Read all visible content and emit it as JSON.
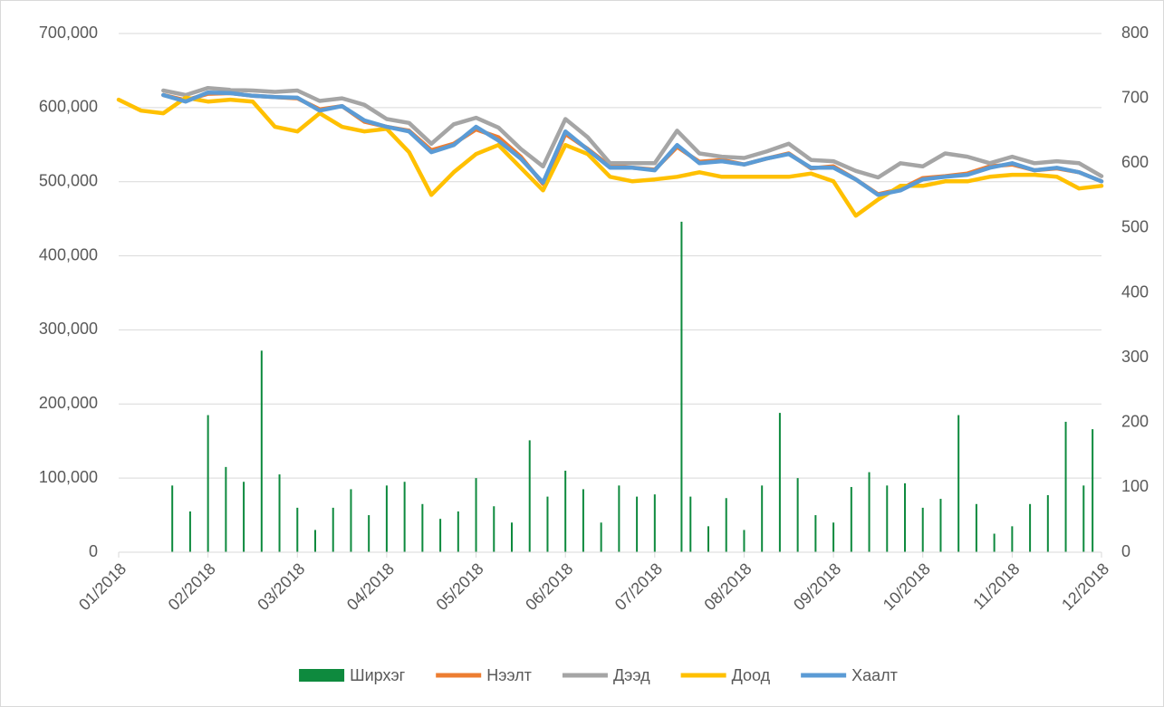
{
  "chart_data": {
    "type": "combo",
    "legend": "bottom",
    "xlim": [
      0,
      11
    ],
    "xticks": [
      {
        "value": 0,
        "label": "01/2018"
      },
      {
        "value": 1,
        "label": "02/2018"
      },
      {
        "value": 2,
        "label": "03/2018"
      },
      {
        "value": 3,
        "label": "04/2018"
      },
      {
        "value": 4,
        "label": "05/2018"
      },
      {
        "value": 5,
        "label": "06/2018"
      },
      {
        "value": 6,
        "label": "07/2018"
      },
      {
        "value": 7,
        "label": "08/2018"
      },
      {
        "value": 8,
        "label": "09/2018"
      },
      {
        "value": 9,
        "label": "10/2018"
      },
      {
        "value": 10,
        "label": "11/2018"
      },
      {
        "value": 11,
        "label": "12/2018"
      }
    ],
    "ylim": [
      0,
      700000
    ],
    "yticks": [
      0,
      {
        "value": 100000,
        "label": "100,000"
      },
      {
        "value": 200000,
        "label": "200,000"
      },
      {
        "value": 300000,
        "label": "300,000"
      },
      {
        "value": 400000,
        "label": "400,000"
      },
      {
        "value": 500000,
        "label": "500,000"
      },
      {
        "value": 600000,
        "label": "600,000"
      },
      {
        "value": 700000,
        "label": "700,000"
      }
    ],
    "y2lim": [
      0,
      800
    ],
    "y2ticks": [
      0,
      100,
      200,
      300,
      400,
      500,
      600,
      700,
      800
    ],
    "grid": true,
    "series": [
      {
        "name": "Ширхэг",
        "type": "bar",
        "color": "#0e8a3e",
        "x": [
          0.6,
          0.8,
          1.0,
          1.2,
          1.4,
          1.6,
          1.8,
          2.0,
          2.2,
          2.4,
          2.6,
          2.8,
          3.0,
          3.2,
          3.4,
          3.6,
          3.8,
          4.0,
          4.2,
          4.4,
          4.6,
          4.8,
          5.0,
          5.2,
          5.4,
          5.6,
          5.8,
          6.0,
          6.3,
          6.4,
          6.6,
          6.8,
          7.0,
          7.2,
          7.4,
          7.6,
          7.8,
          8.0,
          8.2,
          8.4,
          8.6,
          8.8,
          9.0,
          9.2,
          9.4,
          9.6,
          9.8,
          10.0,
          10.2,
          10.4,
          10.6,
          10.8,
          10.9
        ],
        "values": [
          90000,
          55000,
          185000,
          115000,
          95000,
          272000,
          105000,
          60000,
          30000,
          60000,
          85000,
          50000,
          90000,
          95000,
          65000,
          45000,
          55000,
          100000,
          62000,
          40000,
          151000,
          75000,
          110000,
          85000,
          40000,
          90000,
          75000,
          78000,
          446000,
          75000,
          35000,
          73000,
          30000,
          90000,
          188000,
          100000,
          50000,
          40000,
          88000,
          108000,
          90000,
          93000,
          60000,
          72000,
          185000,
          65000,
          25000,
          35000,
          65000,
          77000,
          176000,
          90000,
          166000
        ]
      },
      {
        "name": "Нээлт",
        "type": "line",
        "axis": "y2",
        "color": "#ed7d31",
        "x": [
          0,
          0.25,
          0.5,
          0.75,
          1,
          1.25,
          1.5,
          1.75,
          2,
          2.25,
          2.5,
          2.75,
          3,
          3.25,
          3.5,
          3.75,
          4,
          4.25,
          4.5,
          4.75,
          5,
          5.25,
          5.5,
          5.75,
          6,
          6.25,
          6.5,
          6.75,
          7,
          7.25,
          7.5,
          7.75,
          8,
          8.25,
          8.5,
          8.75,
          9,
          9.25,
          9.5,
          9.75,
          10,
          10.25,
          10.5,
          10.75,
          11
        ],
        "values": [
          null,
          null,
          705,
          697,
          707,
          708,
          704,
          702,
          700,
          683,
          688,
          664,
          656,
          650,
          620,
          630,
          652,
          640,
          610,
          568,
          645,
          622,
          595,
          593,
          590,
          625,
          602,
          605,
          598,
          607,
          615,
          592,
          595,
          575,
          552,
          560,
          577,
          580,
          584,
          595,
          598,
          589,
          592,
          586,
          572
        ]
      },
      {
        "name": "Дээд",
        "type": "line",
        "axis": "y2",
        "color": "#a5a5a5",
        "x": [
          0,
          0.25,
          0.5,
          0.75,
          1,
          1.25,
          1.5,
          1.75,
          2,
          2.25,
          2.5,
          2.75,
          3,
          3.25,
          3.5,
          3.75,
          4,
          4.25,
          4.5,
          4.75,
          5,
          5.25,
          5.5,
          5.75,
          6,
          6.25,
          6.5,
          6.75,
          7,
          7.25,
          7.5,
          7.75,
          8,
          8.25,
          8.5,
          8.75,
          9,
          9.25,
          9.5,
          9.75,
          10,
          10.25,
          10.5,
          10.75,
          11
        ],
        "values": [
          null,
          null,
          712,
          705,
          716,
          713,
          712,
          710,
          712,
          696,
          700,
          690,
          668,
          662,
          630,
          660,
          670,
          655,
          622,
          595,
          668,
          640,
          600,
          600,
          600,
          650,
          615,
          610,
          608,
          618,
          630,
          605,
          603,
          588,
          578,
          600,
          595,
          615,
          610,
          600,
          610,
          600,
          603,
          600,
          580
        ]
      },
      {
        "name": "Доод",
        "type": "line",
        "axis": "y2",
        "color": "#ffc000",
        "x": [
          0,
          0.25,
          0.5,
          0.75,
          1,
          1.25,
          1.5,
          1.75,
          2,
          2.25,
          2.5,
          2.75,
          3,
          3.25,
          3.5,
          3.75,
          4,
          4.25,
          4.5,
          4.75,
          5,
          5.25,
          5.5,
          5.75,
          6,
          6.25,
          6.5,
          6.75,
          7,
          7.25,
          7.5,
          7.75,
          8,
          8.25,
          8.5,
          8.75,
          9,
          9.25,
          9.5,
          9.75,
          10,
          10.25,
          10.5,
          10.75,
          11
        ],
        "values": [
          698,
          681,
          677,
          701,
          695,
          698,
          695,
          656,
          649,
          677,
          656,
          649,
          653,
          617,
          551,
          586,
          614,
          628,
          593,
          558,
          628,
          614,
          579,
          572,
          575,
          579,
          586,
          579,
          579,
          579,
          579,
          584,
          572,
          519,
          544,
          565,
          565,
          572,
          572,
          579,
          582,
          582,
          579,
          561,
          565
        ]
      },
      {
        "name": "Хаалт",
        "type": "line",
        "axis": "y2",
        "color": "#5b9bd5",
        "x": [
          0,
          0.25,
          0.5,
          0.75,
          1,
          1.25,
          1.5,
          1.75,
          2,
          2.25,
          2.5,
          2.75,
          3,
          3.25,
          3.5,
          3.75,
          4,
          4.25,
          4.5,
          4.75,
          5,
          5.25,
          5.5,
          5.75,
          6,
          6.25,
          6.5,
          6.75,
          7,
          7.25,
          7.5,
          7.75,
          8,
          8.25,
          8.5,
          8.75,
          9,
          9.25,
          9.5,
          9.75,
          10,
          10.25,
          10.5,
          10.75,
          11
        ],
        "values": [
          null,
          null,
          705,
          695,
          709,
          708,
          704,
          702,
          701,
          681,
          688,
          666,
          656,
          649,
          617,
          628,
          656,
          635,
          607,
          570,
          649,
          621,
          593,
          593,
          589,
          628,
          600,
          603,
          598,
          607,
          614,
          593,
          593,
          575,
          551,
          558,
          575,
          579,
          582,
          593,
          600,
          589,
          593,
          586,
          572
        ]
      }
    ]
  }
}
